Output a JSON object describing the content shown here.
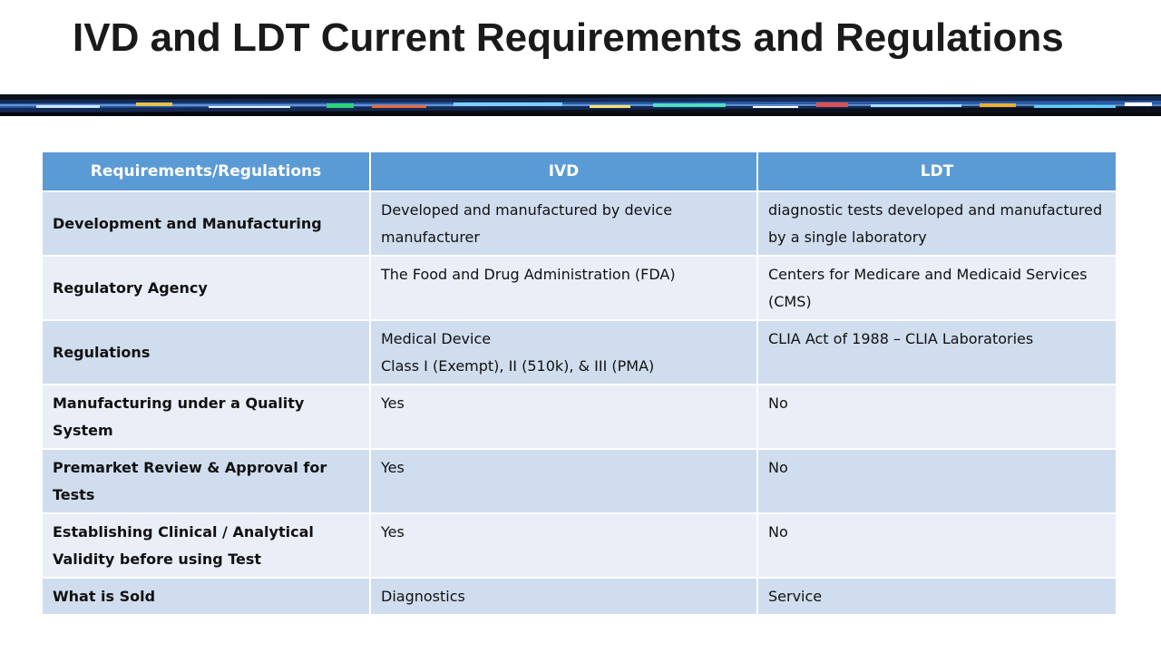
{
  "title": "IVD and LDT Current Requirements and Regulations",
  "table": {
    "headers": [
      "Requirements/Regulations",
      "IVD",
      "LDT"
    ],
    "rows": [
      {
        "label": "Development and Manufacturing",
        "ivd": "Developed and manufactured by device manufacturer",
        "ldt": "diagnostic tests developed and manufactured by a single laboratory"
      },
      {
        "label": "Regulatory Agency",
        "ivd": "The Food and Drug Administration (FDA)",
        "ldt": "Centers for Medicare and Medicaid Services (CMS)"
      },
      {
        "label": "Regulations",
        "ivd_line1": "Medical Device",
        "ivd_line2": "Class I (Exempt), II (510k), & III (PMA)",
        "ldt": "CLIA Act of 1988 – CLIA Laboratories"
      },
      {
        "label": "Manufacturing under a Quality System",
        "ivd": "Yes",
        "ldt": "No"
      },
      {
        "label": "Premarket Review & Approval for Tests",
        "ivd": "Yes",
        "ldt": "No"
      },
      {
        "label": "Establishing Clinical / Analytical Validity before using Test",
        "ivd": "Yes",
        "ldt": "No"
      },
      {
        "label": "What is Sold",
        "ivd": "Diagnostics",
        "ldt": "Service"
      }
    ]
  },
  "colors": {
    "header": "#5b9bd5",
    "row_dark": "#d0ddee",
    "row_light": "#e9eef7"
  }
}
